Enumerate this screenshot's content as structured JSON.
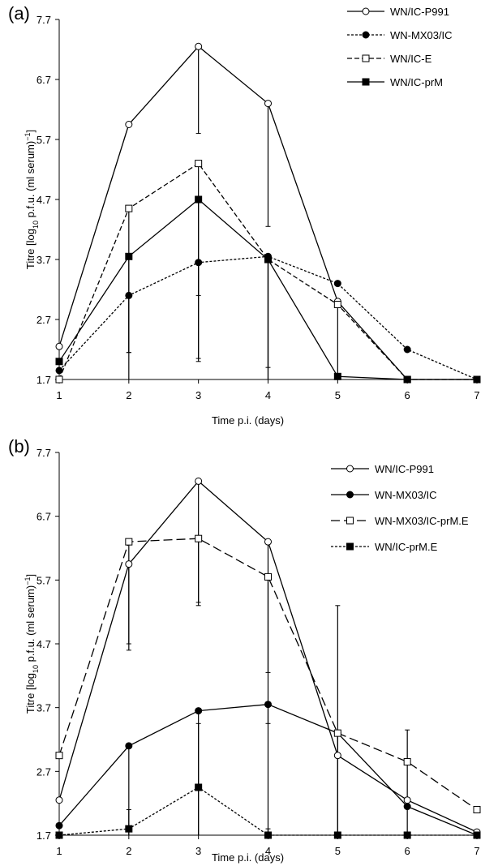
{
  "chart_data": [
    {
      "panel_label": "(a)",
      "type": "line",
      "xlabel": "Time p.i. (days)",
      "ylabel_parts": [
        "Titre [log",
        "10",
        " p.f.u. (ml serum)",
        "−1",
        "]"
      ],
      "x": [
        1,
        2,
        3,
        4,
        5,
        6,
        7
      ],
      "xlim": [
        1,
        7
      ],
      "ylim": [
        1.7,
        7.7
      ],
      "x_ticks": [
        "1",
        "2",
        "3",
        "4",
        "5",
        "6",
        "7"
      ],
      "y_ticks": [
        "1.7",
        "2.7",
        "3.7",
        "4.7",
        "5.7",
        "6.7",
        "7.7"
      ],
      "grid": false,
      "legend_position": "top-right",
      "series": [
        {
          "name": "WN/IC-P991",
          "marker": "circle-open",
          "line": "solid",
          "values": [
            2.25,
            5.95,
            7.25,
            6.3,
            3.0,
            1.7,
            1.7
          ],
          "err_up": [
            0,
            0,
            0,
            0,
            0,
            0,
            0
          ],
          "err_down": [
            0,
            0,
            1.45,
            2.05,
            0,
            0,
            0
          ]
        },
        {
          "name": "WN-MX03/IC",
          "marker": "circle-filled",
          "line": "dotted",
          "values": [
            1.85,
            3.1,
            3.65,
            3.75,
            3.3,
            2.2,
            1.7
          ],
          "err_up": [
            0,
            0,
            0,
            0,
            0,
            0,
            0
          ],
          "err_down": [
            0,
            0.95,
            1.65,
            1.85,
            0,
            0,
            0
          ]
        },
        {
          "name": "WN/IC-E",
          "marker": "square-open",
          "line": "dashed",
          "values": [
            1.7,
            4.55,
            5.3,
            3.7,
            2.95,
            1.7,
            1.7
          ],
          "err_up": [
            0,
            0,
            0,
            0,
            0,
            0,
            0
          ],
          "err_down": [
            0,
            2.4,
            2.2,
            2.3,
            1.25,
            0,
            0
          ]
        },
        {
          "name": "WN/IC-prM",
          "marker": "square-filled",
          "line": "solid",
          "values": [
            2.0,
            3.75,
            4.7,
            3.7,
            1.75,
            1.7,
            1.7
          ],
          "err_up": [
            0,
            0,
            0,
            0,
            0,
            0,
            0
          ],
          "err_down": [
            0,
            2.05,
            2.65,
            2.0,
            0.05,
            0,
            0
          ]
        }
      ]
    },
    {
      "panel_label": "(b)",
      "type": "line",
      "xlabel": "Time p.i. (days)",
      "ylabel_parts": [
        "Titre [log",
        "10",
        " p.f.u. (ml serum)",
        "−1",
        "]"
      ],
      "x": [
        1,
        2,
        3,
        4,
        5,
        6,
        7
      ],
      "xlim": [
        1,
        7
      ],
      "ylim": [
        1.7,
        7.7
      ],
      "x_ticks": [
        "1",
        "2",
        "3",
        "4",
        "5",
        "6",
        "7"
      ],
      "y_ticks": [
        "1.7",
        "2.7",
        "3.7",
        "4.7",
        "5.7",
        "6.7",
        "7.7"
      ],
      "grid": false,
      "legend_position": "top-right",
      "series": [
        {
          "name": "WN/IC-P991",
          "marker": "circle-open",
          "line": "solid",
          "values": [
            2.25,
            5.95,
            7.25,
            6.3,
            2.95,
            2.25,
            1.75
          ],
          "err_up": [
            0,
            0,
            0,
            0,
            0,
            0,
            0
          ],
          "err_down": [
            0,
            1.25,
            1.95,
            2.05,
            0,
            0,
            0
          ]
        },
        {
          "name": "WN-MX03/IC",
          "marker": "circle-filled",
          "line": "solid",
          "values": [
            1.85,
            3.1,
            3.65,
            3.75,
            3.3,
            2.15,
            1.7
          ],
          "err_up": [
            0,
            0,
            0,
            0,
            0,
            0,
            0
          ],
          "err_down": [
            0,
            1.4,
            1.95,
            2.05,
            1.6,
            0,
            0
          ]
        },
        {
          "name": "WN-MX03/IC-prM.E",
          "marker": "square-open",
          "line": "long-dash",
          "values": [
            2.95,
            6.3,
            6.35,
            5.75,
            3.3,
            2.85,
            2.1
          ],
          "err_up": [
            0,
            0,
            0,
            0,
            2.0,
            0.5,
            0
          ],
          "err_down": [
            0,
            1.7,
            1.0,
            2.3,
            1.6,
            1.15,
            0
          ]
        },
        {
          "name": "WN/IC-prM.E",
          "marker": "square-filled",
          "line": "dotted",
          "values": [
            1.7,
            1.8,
            2.45,
            1.7,
            1.7,
            1.7,
            1.7
          ],
          "err_up": [
            0,
            0.3,
            1.0,
            0.1,
            0,
            0,
            0
          ],
          "err_down": [
            0,
            0.1,
            0.75,
            0,
            0,
            0,
            0
          ]
        }
      ]
    }
  ]
}
